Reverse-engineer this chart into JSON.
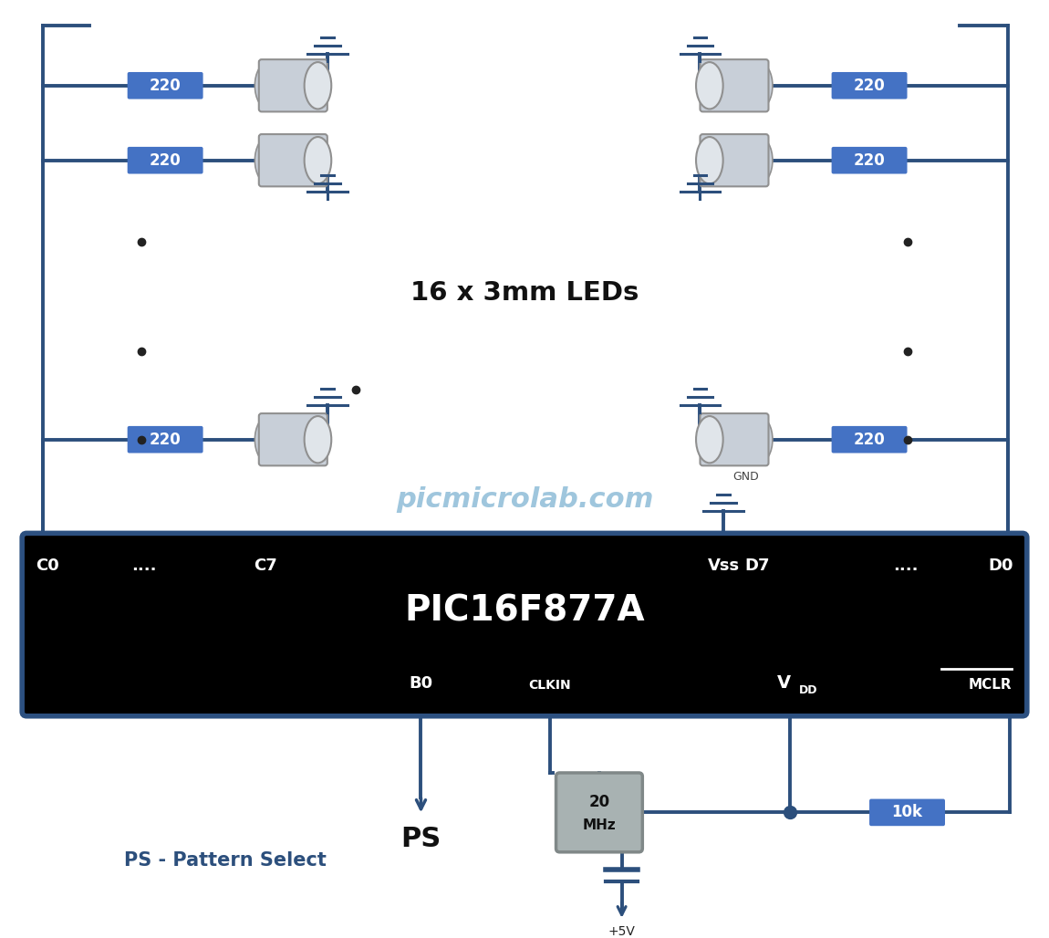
{
  "bg_color": "#ffffff",
  "wire_color": "#2c4f7c",
  "wire_lw": 2.8,
  "resistor_color": "#4472c4",
  "resistor_text_color": "#ffffff",
  "led_body_color": "#c8cfd8",
  "led_front_color": "#e0e5ea",
  "led_outline_color": "#909090",
  "ic_bg": "#000000",
  "ic_border": "#2c5080",
  "ic_text_color": "#ffffff",
  "ic_label": "PIC16F877A",
  "watermark": "picmicrolab.com",
  "watermark_color": "#7ab0d0",
  "led_label": "16 x 3mm LEDs",
  "ps_label": "PS",
  "ps_desc": "PS - Pattern Select",
  "ps_desc_color": "#2c4f7c",
  "freq_label1": "20",
  "freq_label2": "MHz",
  "res_10k": "10k",
  "plus5v": "+5V",
  "gnd_label": "GND",
  "xtal_color": "#a8b2b2",
  "xtal_border": "#808888"
}
